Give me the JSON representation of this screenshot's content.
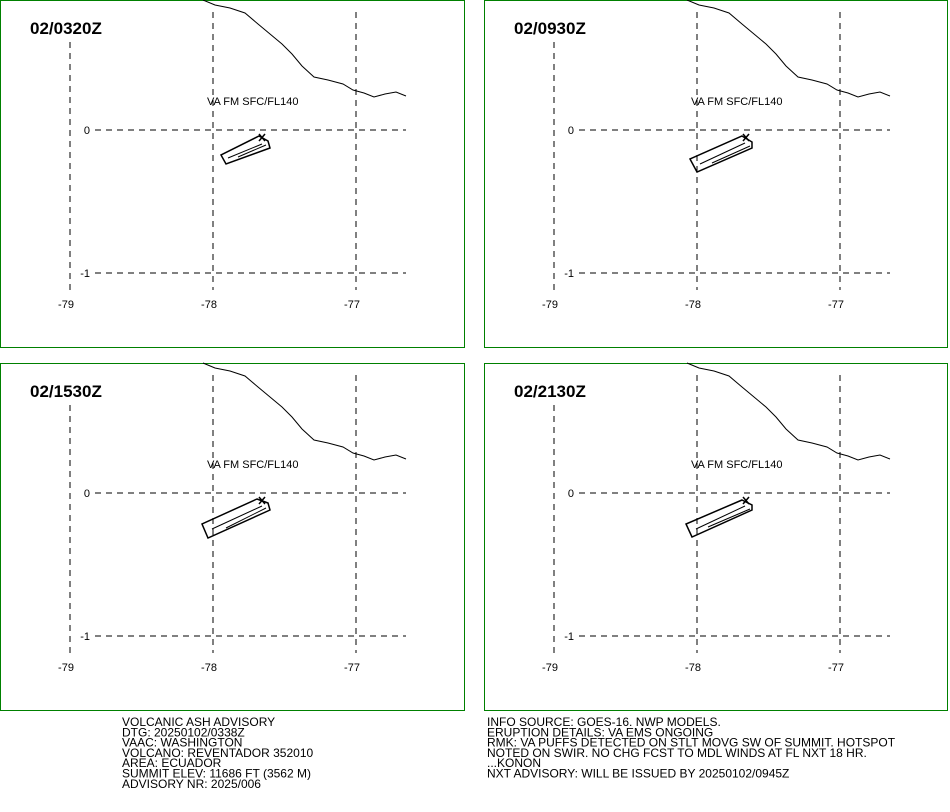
{
  "panels": [
    {
      "time": "02/0320Z",
      "layer_label": "VA FM SFC/FL140",
      "lon_ticks": [
        -79,
        -78,
        -77
      ],
      "lat_ticks": [
        0,
        -1
      ]
    },
    {
      "time": "02/0930Z",
      "layer_label": "VA FM SFC/FL140",
      "lon_ticks": [
        -79,
        -78,
        -77
      ],
      "lat_ticks": [
        0,
        -1
      ]
    },
    {
      "time": "02/1530Z",
      "layer_label": "VA FM SFC/FL140",
      "lon_ticks": [
        -79,
        -78,
        -77
      ],
      "lat_ticks": [
        0,
        -1
      ]
    },
    {
      "time": "02/2130Z",
      "layer_label": "VA FM SFC/FL140",
      "lon_ticks": [
        -79,
        -78,
        -77
      ],
      "lat_ticks": [
        0,
        -1
      ]
    }
  ],
  "advisory_left": [
    "VOLCANIC ASH ADVISORY",
    "DTG: 20250102/0338Z",
    "VAAC: WASHINGTON",
    "VOLCANO: REVENTADOR 352010",
    "AREA: ECUADOR",
    "SUMMIT ELEV: 11686 FT (3562 M)",
    "ADVISORY NR: 2025/006"
  ],
  "advisory_right": [
    "INFO SOURCE: GOES-16. NWP MODELS.",
    "ERUPTION DETAILS: VA EMS ONGOING",
    "RMK: VA PUFFS DETECTED ON STLT MOVG SW OF SUMMIT. HOTSPOT",
    "NOTED ON SWIR. NO CHG FCST TO MDL WINDS AT FL NXT 18 HR.",
    "...KONON",
    "NXT ADVISORY: WILL BE ISSUED BY 20250102/0945Z"
  ]
}
